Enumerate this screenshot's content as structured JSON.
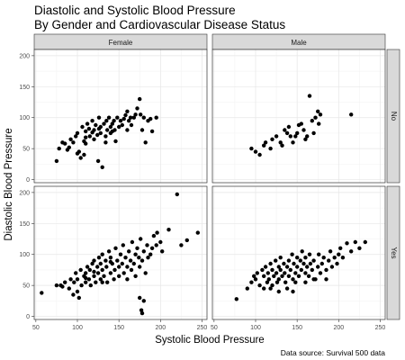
{
  "chart_data": {
    "type": "scatter",
    "title_line1": "Diastolic and Systolic Blood Pressure",
    "title_line2": "By Gender and Cardiovascular Disease Status",
    "xlabel": "Systolic Blood Pressure",
    "ylabel": "Diastolic Blood Pressure",
    "caption": "Data source: Survival 500 data",
    "xlim": [
      48,
      256
    ],
    "ylim": [
      -5,
      210
    ],
    "x_ticks": [
      50,
      100,
      150,
      200,
      250
    ],
    "y_ticks": [
      0,
      50,
      100,
      150,
      200
    ],
    "column_facets": [
      "Female",
      "Male"
    ],
    "row_facets": [
      "No",
      "Yes"
    ],
    "grid": true,
    "point_color": "#000000",
    "panel_bg": "#ffffff",
    "strip_bg": "#d9d9d9",
    "panels": [
      {
        "col": "Female",
        "row": "No",
        "points": [
          [
            75,
            30
          ],
          [
            78,
            50
          ],
          [
            82,
            60
          ],
          [
            85,
            58
          ],
          [
            88,
            48
          ],
          [
            90,
            52
          ],
          [
            92,
            65
          ],
          [
            95,
            60
          ],
          [
            98,
            70
          ],
          [
            100,
            75
          ],
          [
            102,
            45
          ],
          [
            104,
            35
          ],
          [
            106,
            85
          ],
          [
            108,
            40
          ],
          [
            108,
            62
          ],
          [
            110,
            58
          ],
          [
            110,
            78
          ],
          [
            112,
            90
          ],
          [
            114,
            82
          ],
          [
            115,
            70
          ],
          [
            118,
            95
          ],
          [
            120,
            80
          ],
          [
            120,
            65
          ],
          [
            122,
            88
          ],
          [
            124,
            72
          ],
          [
            125,
            30
          ],
          [
            126,
            100
          ],
          [
            128,
            85
          ],
          [
            128,
            75
          ],
          [
            130,
            20
          ],
          [
            132,
            90
          ],
          [
            134,
            70
          ],
          [
            135,
            95
          ],
          [
            136,
            80
          ],
          [
            138,
            100
          ],
          [
            140,
            85
          ],
          [
            140,
            75
          ],
          [
            142,
            90
          ],
          [
            144,
            95
          ],
          [
            145,
            80
          ],
          [
            146,
            62
          ],
          [
            148,
            100
          ],
          [
            150,
            85
          ],
          [
            152,
            95
          ],
          [
            154,
            88
          ],
          [
            156,
            98
          ],
          [
            158,
            104
          ],
          [
            160,
            80
          ],
          [
            160,
            110
          ],
          [
            162,
            95
          ],
          [
            164,
            100
          ],
          [
            165,
            88
          ],
          [
            168,
            100
          ],
          [
            170,
            105
          ],
          [
            172,
            115
          ],
          [
            175,
            130
          ],
          [
            176,
            105
          ],
          [
            178,
            80
          ],
          [
            180,
            100
          ],
          [
            182,
            60
          ],
          [
            185,
            95
          ],
          [
            188,
            98
          ],
          [
            190,
            78
          ],
          [
            195,
            100
          ],
          [
            100,
            42
          ],
          [
            110,
            68
          ],
          [
            118,
            76
          ],
          [
            126,
            82
          ],
          [
            134,
            60
          ],
          [
            142,
            78
          ]
        ]
      },
      {
        "col": "Male",
        "row": "No",
        "points": [
          [
            95,
            50
          ],
          [
            100,
            45
          ],
          [
            105,
            40
          ],
          [
            110,
            55
          ],
          [
            112,
            60
          ],
          [
            118,
            50
          ],
          [
            120,
            65
          ],
          [
            125,
            70
          ],
          [
            130,
            60
          ],
          [
            135,
            80
          ],
          [
            138,
            75
          ],
          [
            140,
            85
          ],
          [
            142,
            70
          ],
          [
            145,
            60
          ],
          [
            150,
            75
          ],
          [
            152,
            88
          ],
          [
            155,
            90
          ],
          [
            158,
            80
          ],
          [
            160,
            65
          ],
          [
            165,
            135
          ],
          [
            168,
            95
          ],
          [
            170,
            75
          ],
          [
            172,
            100
          ],
          [
            175,
            110
          ],
          [
            176,
            90
          ],
          [
            178,
            105
          ],
          [
            215,
            105
          ],
          [
            148,
            70
          ],
          [
            132,
            55
          ],
          [
            162,
            70
          ]
        ]
      },
      {
        "col": "Female",
        "row": "Yes",
        "points": [
          [
            57,
            38
          ],
          [
            75,
            50
          ],
          [
            80,
            50
          ],
          [
            82,
            48
          ],
          [
            85,
            55
          ],
          [
            90,
            45
          ],
          [
            92,
            60
          ],
          [
            95,
            35
          ],
          [
            96,
            55
          ],
          [
            98,
            70
          ],
          [
            100,
            40
          ],
          [
            100,
            60
          ],
          [
            102,
            30
          ],
          [
            104,
            75
          ],
          [
            105,
            50
          ],
          [
            108,
            65
          ],
          [
            110,
            70
          ],
          [
            110,
            55
          ],
          [
            112,
            80
          ],
          [
            114,
            60
          ],
          [
            115,
            75
          ],
          [
            116,
            50
          ],
          [
            118,
            85
          ],
          [
            120,
            65
          ],
          [
            120,
            90
          ],
          [
            122,
            55
          ],
          [
            124,
            80
          ],
          [
            125,
            70
          ],
          [
            126,
            95
          ],
          [
            128,
            60
          ],
          [
            128,
            85
          ],
          [
            130,
            75
          ],
          [
            130,
            100
          ],
          [
            132,
            65
          ],
          [
            134,
            90
          ],
          [
            135,
            80
          ],
          [
            136,
            55
          ],
          [
            138,
            105
          ],
          [
            140,
            70
          ],
          [
            140,
            95
          ],
          [
            142,
            85
          ],
          [
            144,
            60
          ],
          [
            145,
            75
          ],
          [
            146,
            110
          ],
          [
            148,
            90
          ],
          [
            150,
            80
          ],
          [
            150,
            65
          ],
          [
            152,
            100
          ],
          [
            154,
            85
          ],
          [
            155,
            115
          ],
          [
            156,
            70
          ],
          [
            158,
            95
          ],
          [
            160,
            80
          ],
          [
            160,
            60
          ],
          [
            162,
            105
          ],
          [
            164,
            90
          ],
          [
            165,
            75
          ],
          [
            166,
            120
          ],
          [
            168,
            85
          ],
          [
            170,
            100
          ],
          [
            170,
            65
          ],
          [
            172,
            110
          ],
          [
            174,
            95
          ],
          [
            175,
            80
          ],
          [
            176,
            125
          ],
          [
            178,
            90
          ],
          [
            180,
            105
          ],
          [
            182,
            70
          ],
          [
            184,
            115
          ],
          [
            185,
            95
          ],
          [
            188,
            100
          ],
          [
            190,
            110
          ],
          [
            192,
            130
          ],
          [
            195,
            115
          ],
          [
            196,
            135
          ],
          [
            200,
            120
          ],
          [
            202,
            105
          ],
          [
            210,
            140
          ],
          [
            220,
            197
          ],
          [
            225,
            115
          ],
          [
            232,
            123
          ],
          [
            245,
            135
          ],
          [
            178,
            5
          ],
          [
            177,
            10
          ],
          [
            180,
            25
          ],
          [
            175,
            30
          ],
          [
            110,
            62
          ],
          [
            120,
            72
          ],
          [
            130,
            55
          ],
          [
            140,
            88
          ]
        ]
      },
      {
        "col": "Male",
        "row": "Yes",
        "points": [
          [
            77,
            28
          ],
          [
            90,
            45
          ],
          [
            95,
            55
          ],
          [
            98,
            65
          ],
          [
            100,
            60
          ],
          [
            102,
            70
          ],
          [
            105,
            50
          ],
          [
            108,
            75
          ],
          [
            110,
            45
          ],
          [
            110,
            65
          ],
          [
            112,
            80
          ],
          [
            114,
            55
          ],
          [
            115,
            70
          ],
          [
            116,
            60
          ],
          [
            118,
            85
          ],
          [
            120,
            50
          ],
          [
            120,
            75
          ],
          [
            122,
            65
          ],
          [
            124,
            90
          ],
          [
            125,
            70
          ],
          [
            126,
            55
          ],
          [
            128,
            80
          ],
          [
            128,
            60
          ],
          [
            130,
            75
          ],
          [
            130,
            95
          ],
          [
            132,
            65
          ],
          [
            134,
            85
          ],
          [
            135,
            70
          ],
          [
            136,
            55
          ],
          [
            138,
            80
          ],
          [
            140,
            90
          ],
          [
            140,
            65
          ],
          [
            142,
            75
          ],
          [
            144,
            100
          ],
          [
            145,
            60
          ],
          [
            146,
            85
          ],
          [
            148,
            70
          ],
          [
            150,
            95
          ],
          [
            150,
            80
          ],
          [
            152,
            65
          ],
          [
            154,
            90
          ],
          [
            155,
            75
          ],
          [
            156,
            105
          ],
          [
            158,
            85
          ],
          [
            160,
            70
          ],
          [
            160,
            95
          ],
          [
            162,
            80
          ],
          [
            164,
            65
          ],
          [
            165,
            100
          ],
          [
            166,
            85
          ],
          [
            168,
            75
          ],
          [
            170,
            90
          ],
          [
            172,
            60
          ],
          [
            175,
            80
          ],
          [
            176,
            100
          ],
          [
            178,
            70
          ],
          [
            180,
            85
          ],
          [
            182,
            95
          ],
          [
            185,
            75
          ],
          [
            188,
            90
          ],
          [
            190,
            105
          ],
          [
            192,
            80
          ],
          [
            195,
            95
          ],
          [
            198,
            85
          ],
          [
            200,
            100
          ],
          [
            202,
            110
          ],
          [
            205,
            95
          ],
          [
            210,
            118
          ],
          [
            215,
            105
          ],
          [
            220,
            120
          ],
          [
            225,
            110
          ],
          [
            232,
            120
          ],
          [
            148,
            55
          ],
          [
            138,
            45
          ],
          [
            160,
            55
          ],
          [
            170,
            60
          ],
          [
            128,
            40
          ],
          [
            118,
            45
          ],
          [
            145,
            40
          ],
          [
            185,
            60
          ]
        ]
      }
    ]
  }
}
